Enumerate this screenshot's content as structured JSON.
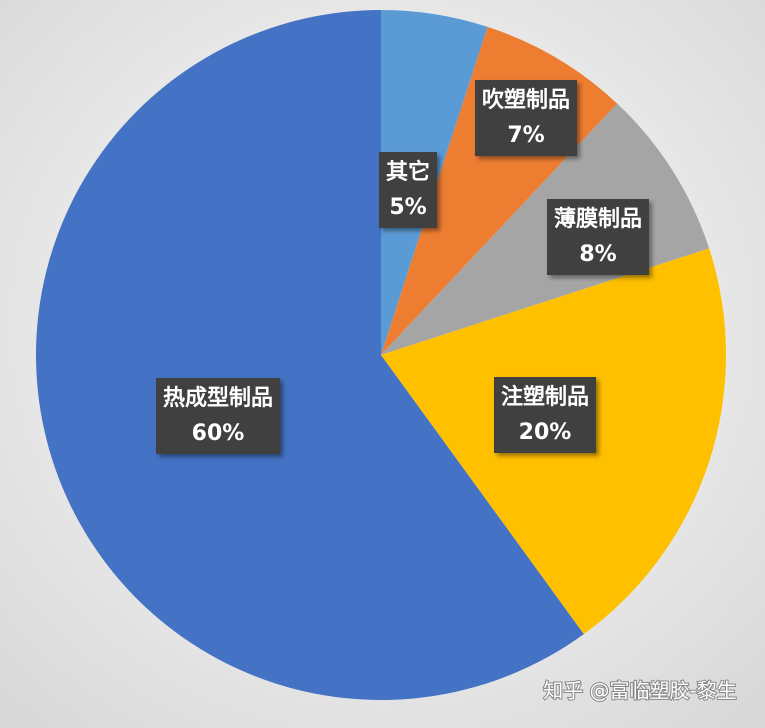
{
  "chart_data": {
    "type": "pie",
    "categories": [
      "其它",
      "吹塑制品",
      "薄膜制品",
      "注塑制品",
      "热成型制品"
    ],
    "values": [
      5,
      7,
      8,
      20,
      60
    ],
    "value_labels": [
      "5%",
      "7%",
      "8%",
      "20%",
      "60%"
    ],
    "colors": [
      "#5b9bd5",
      "#ed7d31",
      "#a5a5a5",
      "#ffc000",
      "#4472c4"
    ],
    "watermark": "知乎 @富临塑胶-黎生"
  }
}
